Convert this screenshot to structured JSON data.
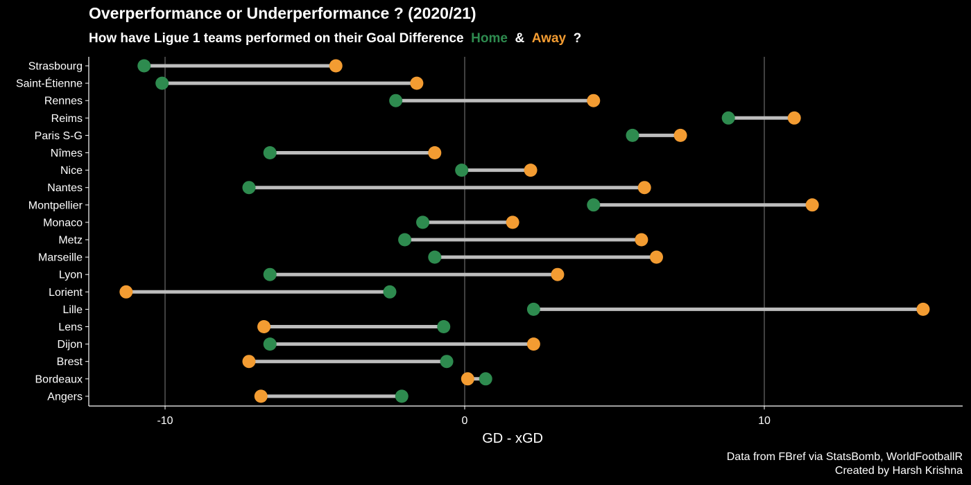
{
  "header": {
    "title": "Overperformance or Underperformance ? (2020/21)",
    "subtitle_prefix": "How have Ligue 1 teams performed on their Goal Difference",
    "home_label": "Home",
    "amp": "&",
    "away_label": "Away",
    "suffix": "?"
  },
  "caption": {
    "line1": "Data from FBref via StatsBomb, WorldFootballR",
    "line2": "Created by Harsh Krishna"
  },
  "colors": {
    "home": "#2e8b4f",
    "away": "#f39c32",
    "segment": "#bdbdbd",
    "grid": "#cccccc",
    "background": "#000000"
  },
  "chart_data": {
    "type": "dumbbell",
    "xlabel": "GD - xGD",
    "ylabel": "",
    "xlim": [
      -12.6,
      16.8
    ],
    "xticks": [
      -10,
      0,
      10
    ],
    "grid": "vertical major at -10, 0, 10",
    "categories": [
      "Strasbourg",
      "Saint-Étienne",
      "Rennes",
      "Reims",
      "Paris S-G",
      "Nîmes",
      "Nice",
      "Nantes",
      "Montpellier",
      "Monaco",
      "Metz",
      "Marseille",
      "Lyon",
      "Lorient",
      "Lille",
      "Lens",
      "Dijon",
      "Brest",
      "Bordeaux",
      "Angers"
    ],
    "series": [
      {
        "name": "Home",
        "values": [
          -10.7,
          -10.1,
          -2.3,
          8.8,
          5.6,
          -6.5,
          -0.1,
          -7.2,
          4.3,
          -1.4,
          -2.0,
          -1.0,
          -6.5,
          -2.5,
          2.3,
          -0.7,
          -6.5,
          -0.6,
          0.7,
          -2.1
        ]
      },
      {
        "name": "Away",
        "values": [
          -4.3,
          -1.6,
          4.3,
          11.0,
          7.2,
          -1.0,
          2.2,
          6.0,
          11.6,
          1.6,
          5.9,
          6.4,
          3.1,
          -11.3,
          15.3,
          -6.7,
          2.3,
          -7.2,
          0.1,
          -6.8
        ]
      }
    ]
  }
}
